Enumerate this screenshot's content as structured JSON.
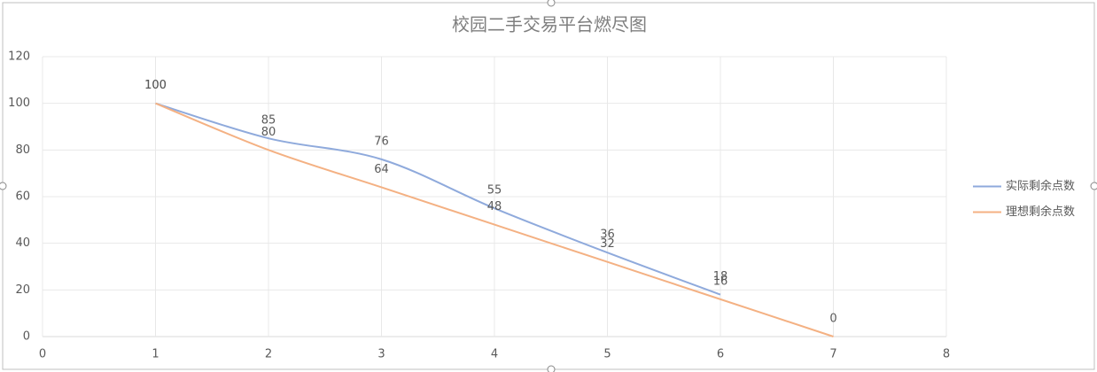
{
  "chart_data": {
    "type": "line",
    "title": "校园二手交易平台燃尽图",
    "xlim": [
      0,
      8
    ],
    "xticks": [
      0,
      1,
      2,
      3,
      4,
      5,
      6,
      7,
      8
    ],
    "ylim": [
      0,
      120
    ],
    "yticks": [
      0,
      20,
      40,
      60,
      80,
      100,
      120
    ],
    "grid": true,
    "legend": "right",
    "smooth": true,
    "series": [
      {
        "name": "实际剩余点数",
        "color": "#8faadc",
        "x": [
          1,
          2,
          3,
          4,
          5,
          6
        ],
        "values": [
          100,
          85,
          76,
          55,
          36,
          18
        ]
      },
      {
        "name": "理想剩余点数",
        "color": "#f4b183",
        "x": [
          1,
          2,
          3,
          4,
          5,
          6,
          7
        ],
        "values": [
          100,
          80,
          64,
          48,
          32,
          16,
          0
        ]
      }
    ]
  }
}
